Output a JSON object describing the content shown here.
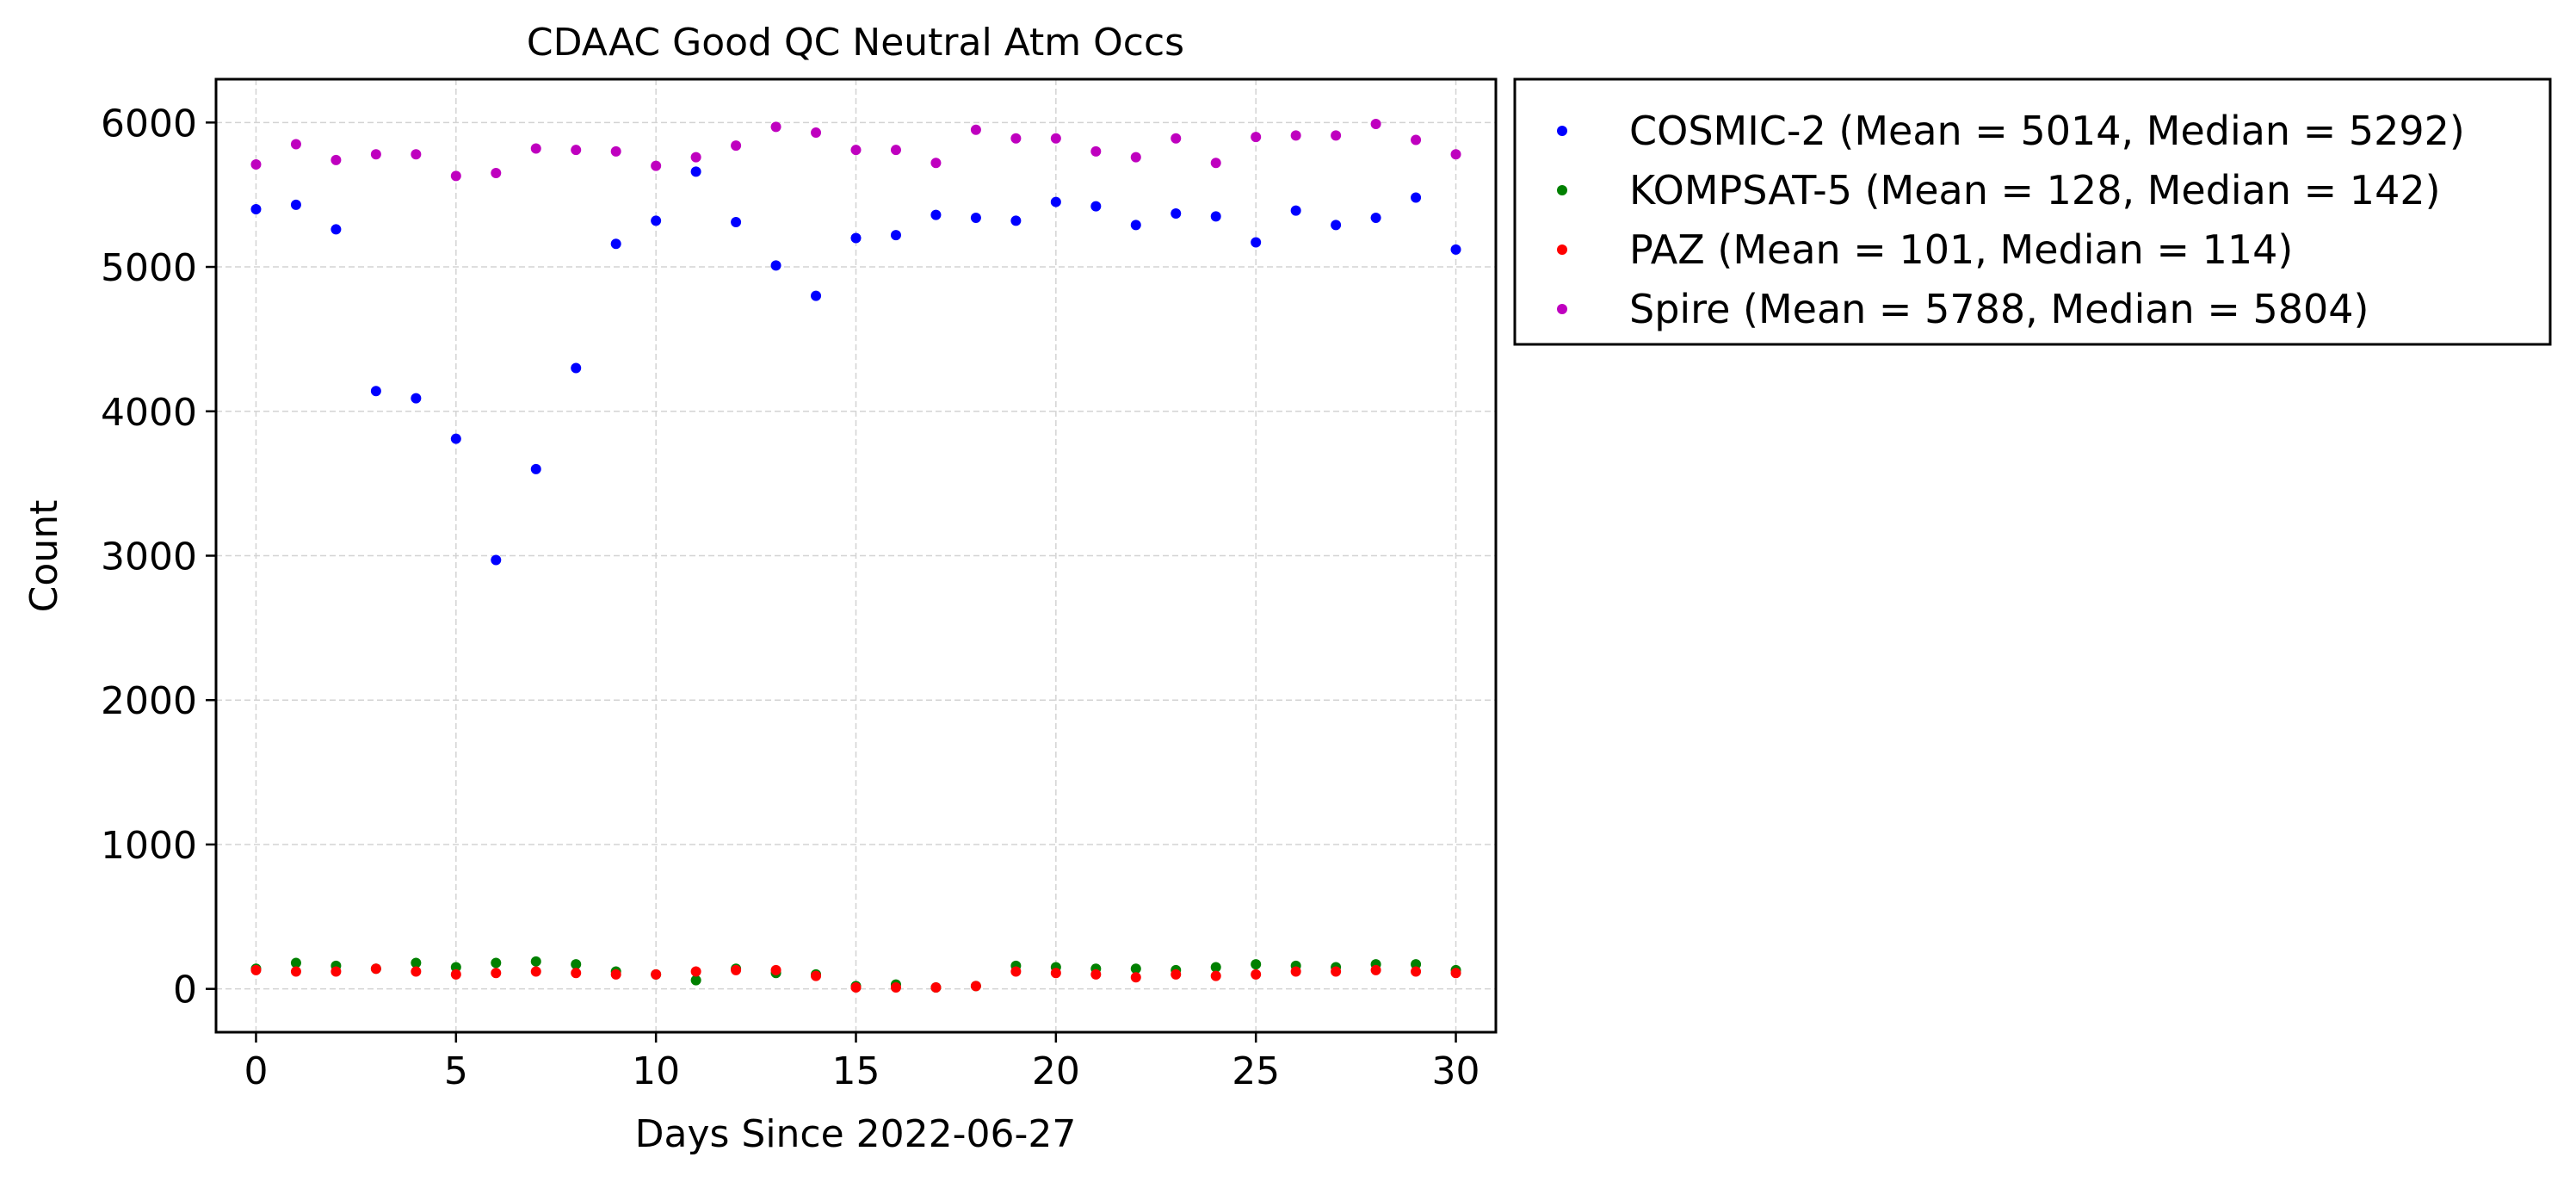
{
  "chart_data": {
    "type": "scatter",
    "title": "CDAAC Good QC Neutral Atm Occs",
    "xlabel": "Days Since 2022-06-27",
    "ylabel": "Count",
    "xlim": [
      -1,
      31
    ],
    "ylim": [
      -300,
      6300
    ],
    "xticks": [
      0,
      5,
      10,
      15,
      20,
      25,
      30
    ],
    "yticks": [
      0,
      1000,
      2000,
      3000,
      4000,
      5000,
      6000
    ],
    "x": [
      0,
      1,
      2,
      3,
      4,
      5,
      6,
      7,
      8,
      9,
      10,
      11,
      12,
      13,
      14,
      15,
      16,
      17,
      18,
      19,
      20,
      21,
      22,
      23,
      24,
      25,
      26,
      27,
      28,
      29,
      30
    ],
    "grid": true,
    "legend_position": "outside-right-top",
    "series": [
      {
        "name": "COSMIC-2 (Mean = 5014, Median = 5292)",
        "color": "#0000ff",
        "values": [
          5400,
          5430,
          5260,
          4140,
          4090,
          3810,
          2970,
          3600,
          4300,
          5160,
          5320,
          5660,
          5310,
          5010,
          4800,
          5200,
          5220,
          5360,
          5340,
          5320,
          5450,
          5420,
          5290,
          5370,
          5350,
          5170,
          5390,
          5290,
          5340,
          5480,
          5120
        ]
      },
      {
        "name": "KOMPSAT-5 (Mean = 128, Median = 142)",
        "color": "#008000",
        "values": [
          140,
          180,
          160,
          140,
          180,
          150,
          180,
          190,
          170,
          120,
          100,
          60,
          140,
          110,
          100,
          20,
          30,
          10,
          20,
          160,
          150,
          140,
          140,
          130,
          150,
          170,
          160,
          150,
          170,
          170,
          130
        ]
      },
      {
        "name": "PAZ (Mean = 101, Median = 114)",
        "color": "#ff0000",
        "values": [
          130,
          120,
          120,
          140,
          120,
          100,
          110,
          120,
          110,
          100,
          100,
          120,
          130,
          130,
          90,
          10,
          10,
          10,
          20,
          120,
          110,
          100,
          80,
          100,
          90,
          100,
          120,
          120,
          130,
          120,
          110
        ]
      },
      {
        "name": "Spire (Mean = 5788, Median = 5804)",
        "color": "#bf00bf",
        "values": [
          5710,
          5850,
          5740,
          5780,
          5780,
          5630,
          5650,
          5820,
          5810,
          5800,
          5700,
          5760,
          5840,
          5970,
          5930,
          5810,
          5810,
          5720,
          5950,
          5890,
          5890,
          5800,
          5760,
          5890,
          5720,
          5900,
          5910,
          5910,
          5990,
          5880,
          5780
        ]
      }
    ]
  }
}
